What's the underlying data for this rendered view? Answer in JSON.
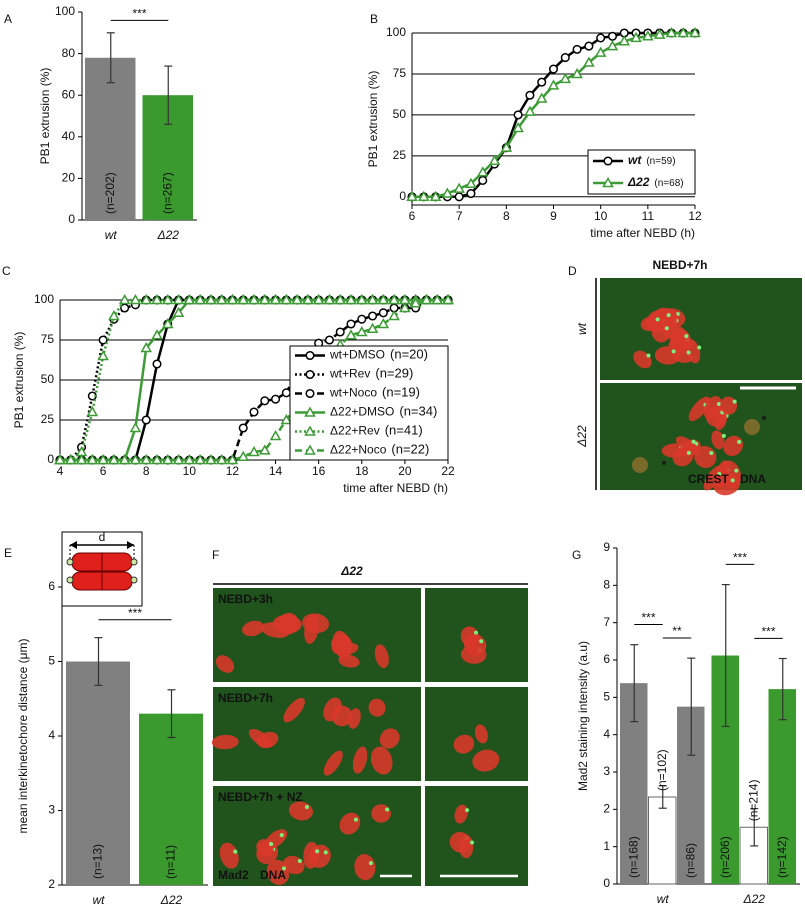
{
  "chart_data": [
    {
      "type": "bar",
      "panel": "A",
      "ylabel": "PB1 extrusion (%)",
      "categories": [
        "wt",
        "Δ22"
      ],
      "values": [
        78,
        60
      ],
      "errors": [
        12,
        14
      ],
      "n_labels": [
        "(n=202)",
        "(n=267)"
      ],
      "colors": [
        "#808080",
        "#3a9a2e"
      ],
      "ylim": [
        0,
        100
      ],
      "yticks": [
        0,
        20,
        40,
        60,
        80,
        100
      ],
      "significance": "***"
    },
    {
      "type": "line",
      "panel": "B",
      "ylabel": "PB1 extrusion (%)",
      "xlabel": "time after NEBD (h)",
      "x": [
        6,
        6.25,
        6.5,
        6.75,
        7,
        7.25,
        7.5,
        7.75,
        8,
        8.25,
        8.5,
        8.75,
        9,
        9.25,
        9.5,
        9.75,
        10,
        10.25,
        10.5,
        10.75,
        11,
        11.25,
        11.5,
        11.75,
        12
      ],
      "series": [
        {
          "name": "wt",
          "note": "(n=59)",
          "color": "#000000",
          "marker": "circle",
          "dash": "solid",
          "values": [
            0,
            0,
            0,
            0,
            0,
            2,
            10,
            20,
            30,
            50,
            62,
            70,
            78,
            85,
            90,
            92,
            97,
            98,
            100,
            100,
            100,
            100,
            100,
            100,
            100
          ]
        },
        {
          "name": "Δ22",
          "note": "(n=68)",
          "color": "#3c9b35",
          "marker": "triangle",
          "dash": "solid",
          "values": [
            0,
            0,
            0,
            2,
            5,
            8,
            15,
            22,
            30,
            42,
            52,
            60,
            68,
            72,
            75,
            82,
            88,
            92,
            95,
            97,
            98,
            99,
            100,
            100,
            100
          ]
        }
      ],
      "xlim": [
        6,
        12
      ],
      "xticks": [
        6,
        7,
        8,
        9,
        10,
        11,
        12
      ],
      "ylim": [
        -5,
        100
      ],
      "yticks": [
        0,
        25,
        50,
        75,
        100
      ],
      "grid": true,
      "legend": "lower right"
    },
    {
      "type": "line",
      "panel": "C",
      "ylabel": "PB1 extrusion (%)",
      "xlabel": "time after NEBD (h)",
      "x": [
        4,
        4.5,
        5,
        5.5,
        6,
        6.5,
        7,
        7.5,
        8,
        8.5,
        9,
        9.5,
        10,
        10.5,
        11,
        11.5,
        12,
        12.5,
        13,
        13.5,
        14,
        14.5,
        15,
        15.5,
        16,
        16.5,
        17,
        17.5,
        18,
        18.5,
        19,
        19.5,
        20,
        20.5,
        21,
        21.5,
        22
      ],
      "series": [
        {
          "name": "wt+DMSO",
          "note": "(n=20)",
          "color": "#000000",
          "marker": "circle",
          "dash": "solid",
          "values": [
            0,
            0,
            0,
            0,
            0,
            0,
            0,
            0,
            25,
            60,
            85,
            100,
            100,
            100,
            100,
            100,
            100,
            100,
            100,
            100,
            100,
            100,
            100,
            100,
            100,
            100,
            100,
            100,
            100,
            100,
            100,
            100,
            100,
            100,
            100,
            100,
            100
          ]
        },
        {
          "name": "wt+Rev",
          "note": "(n=29)",
          "color": "#000000",
          "marker": "circle",
          "dash": "dotted",
          "values": [
            0,
            0,
            8,
            40,
            75,
            88,
            95,
            97,
            100,
            100,
            100,
            100,
            100,
            100,
            100,
            100,
            100,
            100,
            100,
            100,
            100,
            100,
            100,
            100,
            100,
            100,
            100,
            100,
            100,
            100,
            100,
            100,
            100,
            100,
            100,
            100,
            100
          ]
        },
        {
          "name": "wt+Noco",
          "note": "(n=19)",
          "color": "#000000",
          "marker": "circle",
          "dash": "dashed",
          "values": [
            0,
            0,
            0,
            0,
            0,
            0,
            0,
            0,
            0,
            0,
            0,
            0,
            0,
            0,
            0,
            0,
            0,
            20,
            30,
            37,
            38,
            42,
            55,
            65,
            73,
            75,
            80,
            85,
            88,
            90,
            92,
            95,
            95,
            95,
            100,
            100,
            100
          ]
        },
        {
          "name": "Δ22+DMSO",
          "note": "(n=34)",
          "color": "#3c9b35",
          "marker": "triangle",
          "dash": "solid",
          "values": [
            0,
            0,
            0,
            0,
            0,
            0,
            0,
            20,
            70,
            78,
            85,
            92,
            100,
            100,
            100,
            100,
            100,
            100,
            100,
            100,
            100,
            100,
            100,
            100,
            100,
            100,
            100,
            100,
            100,
            100,
            100,
            100,
            100,
            100,
            100,
            100,
            100
          ]
        },
        {
          "name": "Δ22+Rev",
          "note": "(n=41)",
          "color": "#3c9b35",
          "marker": "triangle",
          "dash": "dotted",
          "values": [
            0,
            0,
            5,
            30,
            65,
            90,
            100,
            100,
            100,
            100,
            100,
            100,
            100,
            100,
            100,
            100,
            100,
            100,
            100,
            100,
            100,
            100,
            100,
            100,
            100,
            100,
            100,
            100,
            100,
            100,
            100,
            100,
            100,
            100,
            100,
            100,
            100
          ]
        },
        {
          "name": "Δ22+Noco",
          "note": "(n=22)",
          "color": "#3c9b35",
          "marker": "triangle",
          "dash": "dashed",
          "values": [
            0,
            0,
            0,
            0,
            0,
            0,
            0,
            0,
            0,
            0,
            0,
            0,
            0,
            0,
            0,
            0,
            0,
            2,
            5,
            6,
            15,
            25,
            35,
            45,
            58,
            65,
            72,
            78,
            80,
            82,
            85,
            90,
            95,
            98,
            100,
            100,
            100
          ]
        }
      ],
      "xlim": [
        4,
        22
      ],
      "xticks": [
        4,
        6,
        8,
        10,
        12,
        14,
        16,
        18,
        20,
        22
      ],
      "ylim": [
        0,
        100
      ],
      "yticks": [
        0,
        25,
        50,
        75,
        100
      ],
      "grid": true,
      "legend": "right"
    },
    {
      "type": "image",
      "panel": "D",
      "title": "NEBD+7h",
      "row_labels": [
        "wt",
        "Δ22"
      ],
      "channels": [
        {
          "name": "CREST",
          "color": "#3ec43e"
        },
        {
          "name": "DNA",
          "color": "#e0302a"
        }
      ],
      "annotations": [
        "*",
        "*"
      ]
    },
    {
      "type": "bar",
      "panel": "E",
      "ylabel": "mean interkinetochore distance (μm)",
      "categories": [
        "wt",
        "Δ22"
      ],
      "values": [
        5.0,
        4.3
      ],
      "errors": [
        0.32,
        0.32
      ],
      "n_labels": [
        "(n=13)",
        "(n=11)"
      ],
      "colors": [
        "#808080",
        "#3a9a2e"
      ],
      "ylim": [
        2,
        6
      ],
      "yticks": [
        2,
        3,
        4,
        5,
        6
      ],
      "significance": "***",
      "schematic_label": "d"
    },
    {
      "type": "image",
      "panel": "F",
      "title": "Δ22",
      "row_labels": [
        "NEBD+3h",
        "NEBD+7h",
        "NEBD+7h + NZ"
      ],
      "channels": [
        {
          "name": "Mad2",
          "color": "#3ec43e"
        },
        {
          "name": "DNA",
          "color": "#e0302a"
        }
      ]
    },
    {
      "type": "bar",
      "panel": "G",
      "ylabel": "Mad2 staining intensity (a.u)",
      "categories": [
        "wt",
        "Δ22"
      ],
      "values": [
        [
          5.38,
          2.33,
          4.75
        ],
        [
          6.12,
          1.52,
          5.22
        ]
      ],
      "errors": [
        [
          1.03,
          0.3,
          1.3
        ],
        [
          1.9,
          0.5,
          0.82
        ]
      ],
      "n_labels": [
        [
          "(n=168)",
          "(n=102)",
          "(n=86)"
        ],
        [
          "(n=206)",
          "(n=214)",
          "(n=142)"
        ]
      ],
      "colors": [
        [
          "#808080",
          "#ffffff",
          "#808080"
        ],
        [
          "#3a9a2e",
          "#ffffff",
          "#3a9a2e"
        ]
      ],
      "ylim": [
        0,
        9
      ],
      "yticks": [
        0,
        1,
        2,
        3,
        4,
        5,
        6,
        7,
        8,
        9
      ],
      "significance": [
        [
          "***",
          "**"
        ],
        [
          "***",
          "***"
        ]
      ]
    }
  ]
}
